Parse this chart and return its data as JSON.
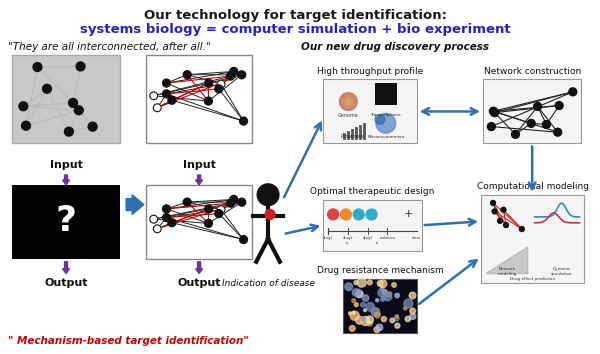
{
  "title_line1": "Our technology for target identification:",
  "title_line2": "systems biology = computer simulation + bio experiment",
  "title_line1_color": "#1a1a1a",
  "title_line2_color": "#2222cc",
  "subtitle_left": "\"They are all interconnected, after all.\"",
  "subtitle_right": "Our new drug discovery process",
  "label_input": "Input",
  "label_output": "Output",
  "label_question": "?",
  "label_bottom_red": "\" Mechanism-based target identification\"",
  "label_indication": "Indication of disease",
  "label_htp": "High throughput profile",
  "label_network": "Network construction",
  "label_optimal": "Optimal therapeutic design",
  "label_computational": "Computational modeling",
  "label_drug_resistance": "Drug resistance mechanism",
  "bg_color": "#ffffff",
  "node_color": "#111111",
  "edge_color_black": "#222222",
  "edge_color_red": "#cc0000",
  "arrow_color_blue": "#3070b0",
  "arrow_color_purple": "#7030a0",
  "box_bg_gray": "#c8c8c8",
  "box_bg_white": "#ffffff",
  "box_bg_black": "#000000"
}
